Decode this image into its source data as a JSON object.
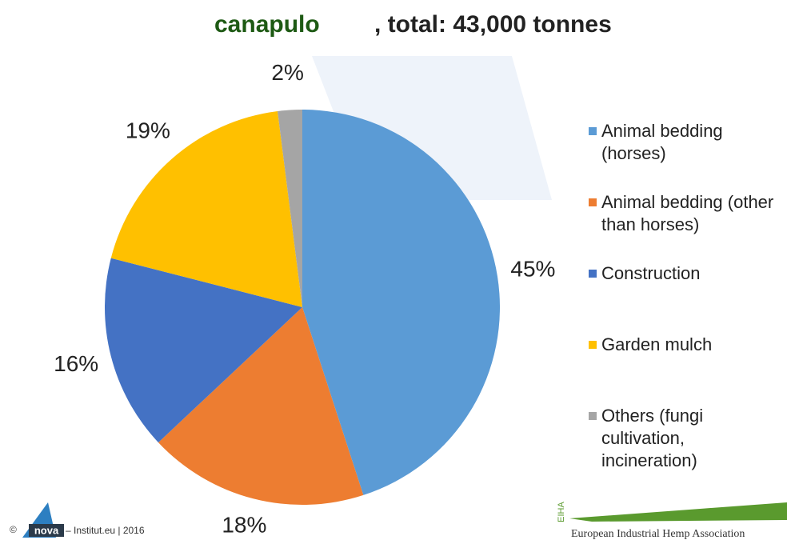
{
  "chart_data": {
    "type": "pie",
    "title": [
      "canapulo",
      ", total: 43,000 tonnes"
    ],
    "categories": [
      "Animal bedding (horses)",
      "Animal bedding (other than horses)",
      "Construction",
      "Garden mulch",
      "Others (fungi cultivation, incineration)"
    ],
    "values": [
      45,
      18,
      16,
      19,
      2
    ],
    "value_labels": [
      "45%",
      "18%",
      "16%",
      "19%",
      "2%"
    ],
    "colors": [
      "#5b9bd5",
      "#ed7d31",
      "#4472c4",
      "#ffc000",
      "#a5a5a5"
    ],
    "legend": "right"
  },
  "footer": {
    "copyright": "©",
    "logo": "nova",
    "credit": "– Institut.eu | 2016",
    "eiha": "EIHA",
    "association": "European Industrial Hemp Association"
  }
}
